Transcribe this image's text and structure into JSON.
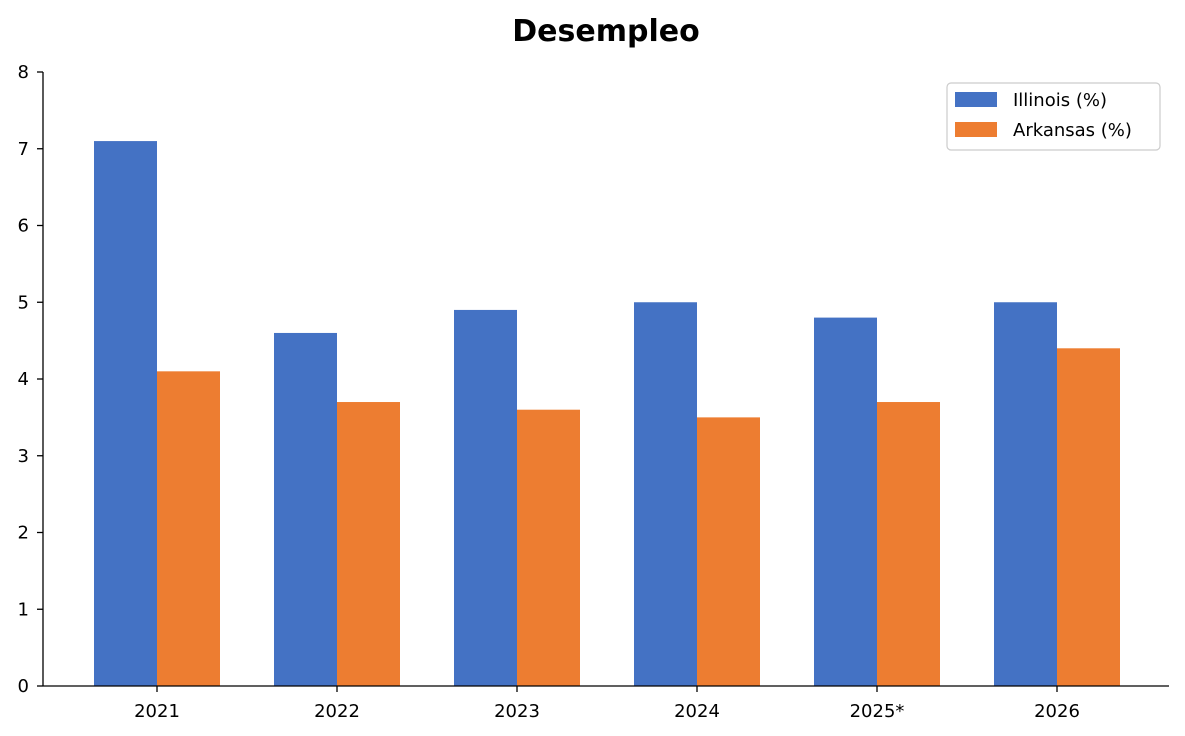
{
  "chart_data": {
    "type": "bar",
    "title": "Desempleo",
    "xlabel": "",
    "ylabel": "",
    "categories": [
      "2021",
      "2022",
      "2023",
      "2024",
      "2025*",
      "2026"
    ],
    "series": [
      {
        "name": "Illinois (%)",
        "color": "#4472C4",
        "values": [
          7.1,
          4.6,
          4.9,
          5.0,
          4.8,
          5.0
        ]
      },
      {
        "name": "Arkansas (%)",
        "color": "#ED7D31",
        "values": [
          4.1,
          3.7,
          3.6,
          3.5,
          3.7,
          4.4
        ]
      }
    ],
    "ylim": [
      0,
      8
    ],
    "yticks": [
      "0",
      "1",
      "2",
      "3",
      "4",
      "5",
      "6",
      "7",
      "8"
    ],
    "grid": false,
    "legend_position": "top-right"
  }
}
